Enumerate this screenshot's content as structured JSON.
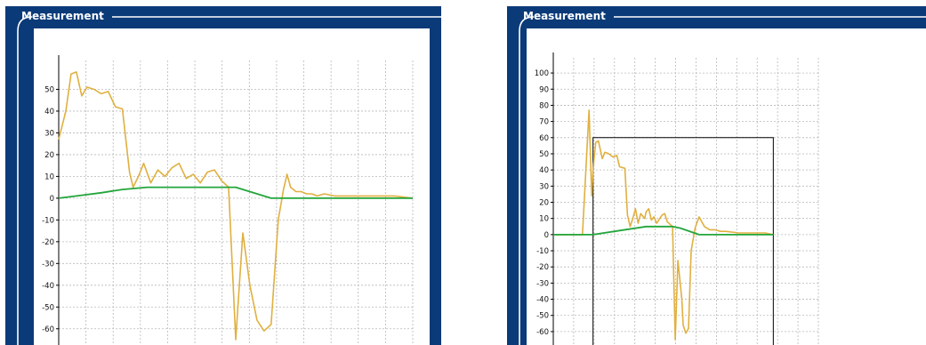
{
  "panels": [
    {
      "title": "Measurement",
      "chart_data": {
        "type": "line",
        "ylim": [
          -65,
          60
        ],
        "yticks": [
          50,
          40,
          30,
          20,
          10,
          0,
          -10,
          -20,
          -30,
          -40,
          -50,
          -60
        ],
        "xlim": [
          0,
          100
        ],
        "grid": true,
        "series": [
          {
            "color": "#e0b040",
            "x": [
              0,
              2,
              3.5,
              5,
              6.5,
              8,
              10,
              12,
              14,
              16,
              18,
              20,
              21,
              22.5,
              24,
              26,
              28,
              30,
              32,
              34,
              36,
              38,
              40,
              42,
              44,
              46,
              48,
              50,
              52,
              54,
              56,
              58,
              60,
              62,
              63.5,
              64.5,
              65.5,
              67,
              68.5,
              70,
              71.5,
              73,
              75,
              78,
              80,
              85,
              90,
              95,
              100
            ],
            "y": [
              27,
              40,
              57,
              58,
              47,
              51,
              50,
              48,
              49,
              42,
              41,
              12,
              5,
              10,
              16,
              7,
              13,
              10,
              14,
              16,
              9,
              11,
              7,
              12,
              13,
              8,
              5,
              -65,
              -16,
              -40,
              -56,
              -61,
              -58,
              -10,
              4,
              11,
              5,
              3,
              3,
              2,
              2,
              1,
              2,
              1,
              1,
              1,
              1,
              1,
              0
            ]
          },
          {
            "color": "#22a53a",
            "x": [
              0,
              5,
              12,
              18,
              25,
              50,
              60,
              65,
              70,
              80,
              90,
              100
            ],
            "y": [
              0,
              1,
              2.5,
              4,
              5,
              5,
              0,
              0,
              0,
              0,
              0,
              0
            ]
          }
        ]
      }
    },
    {
      "title": "Measurement",
      "chart_data": {
        "type": "line",
        "ylim": [
          -65,
          105
        ],
        "yticks": [
          100,
          90,
          80,
          70,
          60,
          50,
          40,
          30,
          20,
          10,
          0,
          -10,
          -20,
          -30,
          -40,
          -50,
          -60
        ],
        "xlim": [
          0,
          100
        ],
        "grid": true,
        "selection_box": {
          "x": [
            15,
            83
          ],
          "y": [
            -65,
            60
          ]
        },
        "series": [
          {
            "color": "#e0b040",
            "x": [
              0,
              11,
              13.5,
              14.5,
              15,
              16,
              17,
              18.5,
              19.5,
              21,
              22.5,
              24,
              25,
              27,
              28,
              29,
              30,
              31,
              32,
              33,
              34.5,
              35,
              36,
              37,
              38,
              39,
              41,
              42,
              43,
              45,
              46,
              47,
              48.5,
              49,
              50,
              51,
              52,
              53.5,
              55,
              57,
              59,
              61,
              63,
              65,
              70,
              75,
              80,
              83
            ],
            "y": [
              0,
              0,
              77,
              24,
              40,
              57,
              58,
              47,
              51,
              50,
              48,
              49,
              42,
              41,
              12,
              5,
              10,
              16,
              7,
              13,
              10,
              14,
              16,
              9,
              11,
              7,
              12,
              13,
              8,
              5,
              -65,
              -16,
              -40,
              -56,
              -61,
              -58,
              -10,
              4,
              11,
              5,
              3,
              3,
              2,
              2,
              1,
              1,
              1,
              0
            ]
          },
          {
            "color": "#22a53a",
            "x": [
              0,
              10,
              15,
              25,
              35,
              45,
              48,
              55,
              83
            ],
            "y": [
              0,
              0,
              0,
              2.5,
              5,
              5,
              4,
              0,
              0
            ]
          }
        ]
      }
    }
  ]
}
